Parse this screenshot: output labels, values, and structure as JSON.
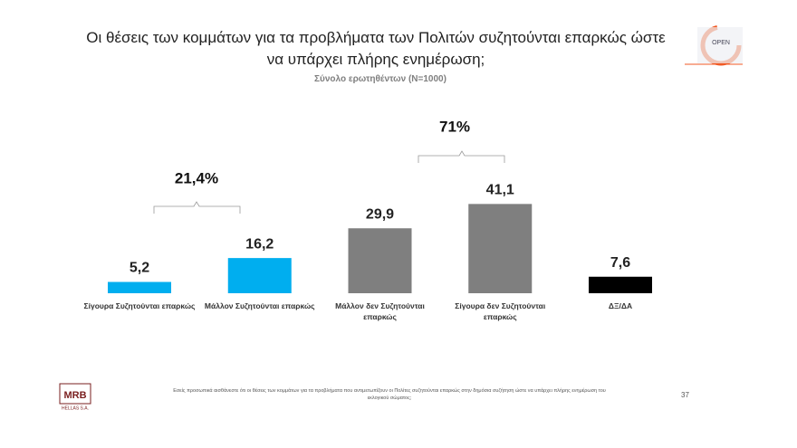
{
  "chart_data": {
    "type": "bar",
    "title": "Οι θέσεις των κομμάτων για τα προβλήματα των Πολιτών συζητούνται επαρκώς ώστε να υπάρχει πλήρης ενημέρωση;",
    "subtitle": "Σύνολο ερωτηθέντων (N=1000)",
    "categories": [
      "Σίγουρα Συζητούνται επαρκώς",
      "Μάλλον Συζητούνται επαρκώς",
      "Μάλλον δεν Συζητούνται επαρκώς",
      "Σίγουρα δεν Συζητούνται επαρκώς",
      "ΔΞ/ΔΑ"
    ],
    "values": [
      5.2,
      16.2,
      29.9,
      41.1,
      7.6
    ],
    "value_labels": [
      "5,2",
      "16,2",
      "29,9",
      "41,1",
      "7,6"
    ],
    "colors": [
      "#00aeef",
      "#00aeef",
      "#7f7f7f",
      "#7f7f7f",
      "#000000"
    ],
    "annotations": [
      "21,4%",
      "71%"
    ],
    "footnote": "Εσείς προσωπικά αισθάνεστε ότι οι θέσεις των κομμάτων για τα προβλήματα που αντιμετωπίζουν οι Πολίτες συζητούνται επαρκώς στην δημόσια συζήτηση ώστε να υπάρχει πλήρης ενημέρωση του εκλογικού σώματος;",
    "page_number": "37",
    "logo_top": "OPEN",
    "logo_bottom": {
      "name": "MRB",
      "sub": "HELLAS S.A."
    }
  }
}
